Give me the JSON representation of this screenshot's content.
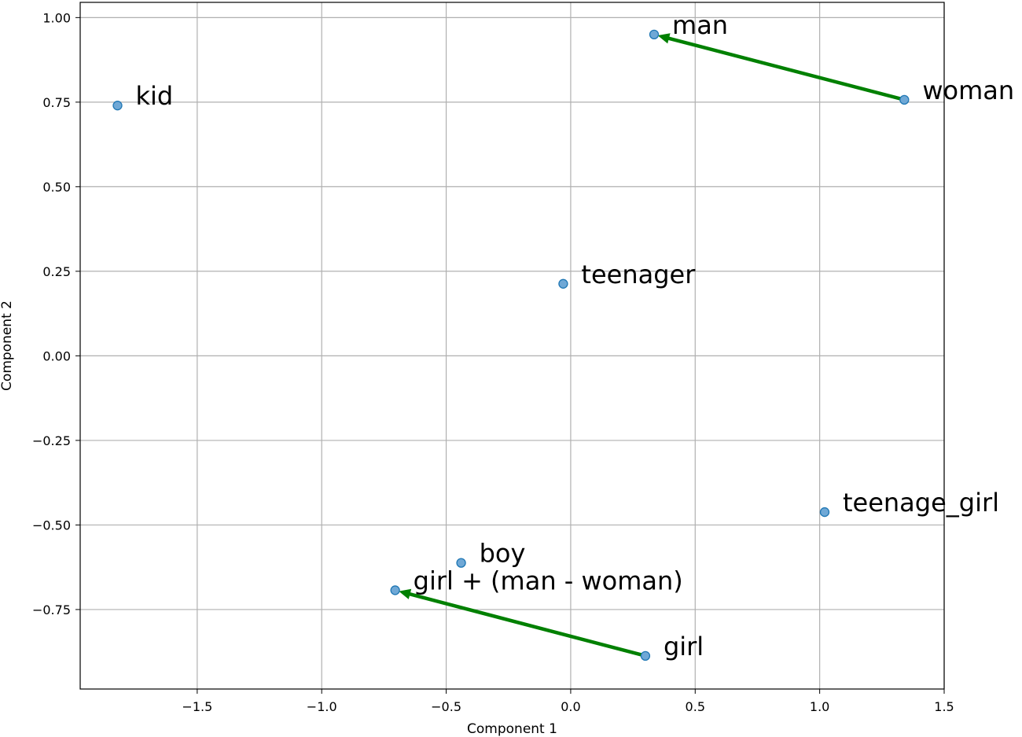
{
  "chart_data": {
    "type": "scatter",
    "title": "",
    "xlabel": "Component 1",
    "ylabel": "Component 2",
    "xlim": [
      -1.97,
      1.5
    ],
    "ylim": [
      -0.985,
      1.045
    ],
    "grid": true,
    "x_ticks": [
      -1.5,
      -1.0,
      -0.5,
      0.0,
      0.5,
      1.0,
      1.5
    ],
    "x_tick_labels": [
      "−1.5",
      "−1.0",
      "−0.5",
      "0.0",
      "0.5",
      "1.0",
      "1.5"
    ],
    "y_ticks": [
      1.0,
      0.75,
      0.5,
      0.25,
      0.0,
      -0.25,
      -0.5,
      -0.75
    ],
    "y_tick_labels": [
      "1.00",
      "0.75",
      "0.50",
      "0.25",
      "0.00",
      "−0.25",
      "−0.50",
      "−0.75"
    ],
    "points": [
      {
        "label": "man",
        "x": 0.335,
        "y": 0.95
      },
      {
        "label": "woman",
        "x": 1.34,
        "y": 0.757
      },
      {
        "label": "kid",
        "x": -1.82,
        "y": 0.74
      },
      {
        "label": "teenager",
        "x": -0.03,
        "y": 0.213
      },
      {
        "label": "teenage_girl",
        "x": 1.02,
        "y": -0.462
      },
      {
        "label": "boy",
        "x": -0.44,
        "y": -0.612
      },
      {
        "label": "girl + (man - woman)",
        "x": -0.705,
        "y": -0.693
      },
      {
        "label": "girl",
        "x": 0.3,
        "y": -0.887
      }
    ],
    "arrows": [
      {
        "from": "woman",
        "to": "man",
        "color": "#008000"
      },
      {
        "from": "girl",
        "to": "girl + (man - woman)",
        "color": "#008000"
      }
    ],
    "point_color": "#6fa8d6",
    "point_edge_color": "#1f77b4"
  }
}
